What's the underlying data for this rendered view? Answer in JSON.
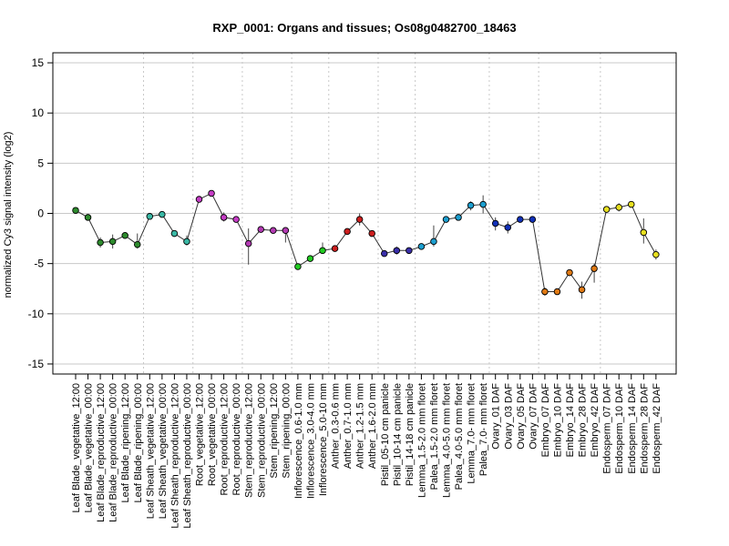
{
  "chart_data": {
    "type": "line",
    "title": "RXP_0001: Organs and tissues; Os08g0482700_18463",
    "xlabel": "",
    "ylabel": "normalized Cy3 signal intensity (log2)",
    "ylim": [
      -16,
      16
    ],
    "yticks": [
      -15,
      -10,
      -5,
      0,
      5,
      10,
      15
    ],
    "grid": true,
    "categories": [
      "Leaf Blade_vegetative_12:00",
      "Leaf Blade_vegetative_00:00",
      "Leaf Blade_reproductive_12:00",
      "Leaf Blade_reproductive_00:00",
      "Leaf Blade_ripening_12:00",
      "Leaf Blade_ripening_00:00",
      "Leaf Sheath_vegetative_12:00",
      "Leaf Sheath_vegetative_00:00",
      "Leaf Sheath_reproductive_12:00",
      "Leaf Sheath_reproductive_00:00",
      "Root_vegetative_12:00",
      "Root_vegetative_00:00",
      "Root_reproductive_12:00",
      "Root_reproductive_00:00",
      "Stem_reproductive_12:00",
      "Stem_reproductive_00:00",
      "Stem_ripening_12:00",
      "Stem_ripening_00:00",
      "Inflorescence_0.6-1.0 mm",
      "Inflorescence_3.0-4.0 mm",
      "Inflorescence_5.0-10 mm",
      "Anther_0.3-0.6 mm",
      "Anther_0.7-1.0 mm",
      "Anther_1.2-1.5 mm",
      "Anther_1.6-2.0 mm",
      "Pistil_05-10 cm panicle",
      "Pistil_10-14 cm panicle",
      "Pistil_14-18 cm panicle",
      "Lemma_1.5-2.0 mm floret",
      "Palea_1.5-2.0 mm floret",
      "Lemma_4.0-5.0 mm floret",
      "Palea_4.0-5.0 mm floret",
      "Lemma_7.0- mm floret",
      "Palea_7.0- mm floret",
      "Ovary_01 DAF",
      "Ovary_03 DAF",
      "Ovary_05 DAF",
      "Ovary_07 DAF",
      "Embryo_07 DAF",
      "Embryo_10 DAF",
      "Embryo_14 DAF",
      "Embryo_28 DAF",
      "Embryo_42 DAF",
      "Endosperm_07 DAF",
      "Endosperm_10 DAF",
      "Endosperm_14 DAF",
      "Endosperm_28 DAF",
      "Endosperm_42 DAF"
    ],
    "values": [
      0.3,
      -0.4,
      -2.9,
      -2.8,
      -2.2,
      -3.1,
      -0.3,
      -0.1,
      -2.0,
      -2.8,
      1.4,
      2.0,
      -0.4,
      -0.6,
      -3.0,
      -1.6,
      -1.7,
      -1.7,
      -5.3,
      -4.5,
      -3.7,
      -3.5,
      -1.8,
      -0.6,
      -2.0,
      -4.0,
      -3.7,
      -3.7,
      -3.3,
      -2.8,
      -0.6,
      -0.4,
      0.8,
      0.9,
      -1.0,
      -1.4,
      -0.6,
      -0.6,
      -7.8,
      -7.8,
      -5.9,
      -7.6,
      -5.5,
      0.4,
      0.6,
      0.9,
      -1.9,
      -4.1
    ],
    "errors": [
      [
        0.2,
        0.4
      ],
      [
        -0.5,
        -0.3
      ],
      [
        -3.4,
        -2.4
      ],
      [
        -3.5,
        -2.1
      ],
      [
        -2.4,
        -2.0
      ],
      [
        -3.5,
        -2.0
      ],
      [
        -0.4,
        -0.2
      ],
      [
        -0.2,
        0.0
      ],
      [
        -2.1,
        -1.9
      ],
      [
        -3.2,
        -2.2
      ],
      [
        1.1,
        1.7
      ],
      [
        1.9,
        2.1
      ],
      [
        -0.8,
        0.1
      ],
      [
        -0.7,
        -0.4
      ],
      [
        -5.1,
        -1.5
      ],
      [
        -1.9,
        -1.3
      ],
      [
        -1.9,
        -1.5
      ],
      [
        -2.9,
        -1.5
      ],
      [
        -5.4,
        -5.2
      ],
      [
        -4.7,
        -4.3
      ],
      [
        -3.9,
        -2.9
      ],
      [
        -3.6,
        -3.4
      ],
      [
        -2.0,
        -1.6
      ],
      [
        -1.2,
        0.0
      ],
      [
        -2.1,
        -1.9
      ],
      [
        -4.2,
        -3.8
      ],
      [
        -4.1,
        -3.3
      ],
      [
        -3.9,
        -3.4
      ],
      [
        -3.5,
        -3.1
      ],
      [
        -3.3,
        -1.2
      ],
      [
        -0.9,
        -0.3
      ],
      [
        -0.6,
        -0.2
      ],
      [
        0.3,
        1.2
      ],
      [
        0.0,
        1.8
      ],
      [
        -1.7,
        -0.4
      ],
      [
        -2.0,
        -0.8
      ],
      [
        -0.9,
        -0.4
      ],
      [
        -0.8,
        -0.4
      ],
      [
        -8.2,
        -7.4
      ],
      [
        -8.0,
        -7.6
      ],
      [
        -6.1,
        -5.7
      ],
      [
        -8.5,
        -6.8
      ],
      [
        -6.9,
        -5.0
      ],
      [
        0.1,
        0.7
      ],
      [
        0.2,
        1.0
      ],
      [
        0.7,
        1.1
      ],
      [
        -3.0,
        -0.5
      ],
      [
        -4.6,
        -3.6
      ]
    ],
    "colors": [
      "#2e8b2e",
      "#2e8b2e",
      "#2e8b2e",
      "#2e8b2e",
      "#2e8b2e",
      "#2e8b2e",
      "#3ab8a5",
      "#3ab8a5",
      "#3ab8a5",
      "#3ab8a5",
      "#c63cc6",
      "#c63cc6",
      "#c63cc6",
      "#c63cc6",
      "#b33ab3",
      "#b33ab3",
      "#b33ab3",
      "#b33ab3",
      "#22cc22",
      "#22cc22",
      "#22cc22",
      "#cc1e1e",
      "#cc1e1e",
      "#cc1e1e",
      "#cc1e1e",
      "#3a2faa",
      "#3a2faa",
      "#3a2faa",
      "#1c9fd0",
      "#1c9fd0",
      "#1c9fd0",
      "#1c9fd0",
      "#1c9fd0",
      "#1c9fd0",
      "#1030b8",
      "#1030b8",
      "#1030b8",
      "#1030b8",
      "#e07a14",
      "#e07a14",
      "#e07a14",
      "#e07a14",
      "#e07a14",
      "#e8e020",
      "#e8e020",
      "#e8e020",
      "#e8e020",
      "#e8e020"
    ],
    "group_separators_after": [
      5,
      9,
      13,
      17,
      20,
      24,
      27,
      33,
      37,
      42
    ]
  }
}
